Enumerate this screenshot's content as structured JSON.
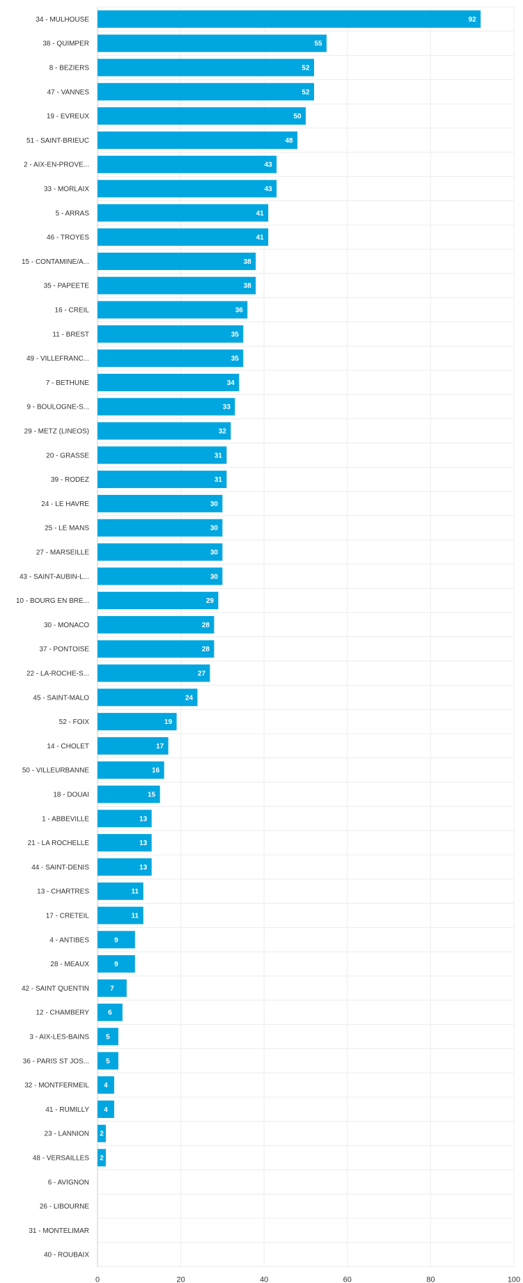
{
  "chart_data": {
    "type": "bar",
    "orientation": "horizontal",
    "title": "",
    "xlabel": "",
    "ylabel": "",
    "xlim": [
      0,
      100
    ],
    "x_ticks": [
      0,
      20,
      40,
      60,
      80,
      100
    ],
    "grid": true,
    "legend": "none",
    "bar_color": "#00a6df",
    "categories": [
      "34 - MULHOUSE",
      "38 - QUIMPER",
      "8 - BEZIERS",
      "47 - VANNES",
      "19 - EVREUX",
      "51 - SAINT-BRIEUC",
      "2 - AIX-EN-PROVE...",
      "33 - MORLAIX",
      "5 - ARRAS",
      "46 - TROYES",
      "15 - CONTAMINE/A...",
      "35 - PAPEETE",
      "16 - CREIL",
      "11 - BREST",
      "49 - VILLEFRANC...",
      "7 - BETHUNE",
      "9 - BOULOGNE-S...",
      "29 - METZ (LINEOS)",
      "20 - GRASSE",
      "39 - RODEZ",
      "24 - LE HAVRE",
      "25 - LE MANS",
      "27 - MARSEILLE",
      "43 - SAINT-AUBIN-L...",
      "10 - BOURG EN BRE...",
      "30 - MONACO",
      "37 - PONTOISE",
      "22 - LA-ROCHE-S...",
      "45 - SAINT-MALO",
      "52 - FOIX",
      "14 - CHOLET",
      "50 - VILLEURBANNE",
      "18 - DOUAI",
      "1 - ABBEVILLE",
      "21 - LA ROCHELLE",
      "44 - SAINT-DENIS",
      "13 - CHARTRES",
      "17 - CRETEIL",
      "4 - ANTIBES",
      "28 - MEAUX",
      "42 - SAINT QUENTIN",
      "12 - CHAMBERY",
      "3 - AIX-LES-BAINS",
      "36 - PARIS ST JOS...",
      "32 - MONTFERMEIL",
      "41 - RUMILLY",
      "23 - LANNION",
      "48 - VERSAILLES",
      "6 - AVIGNON",
      "26 - LIBOURNE",
      "31 - MONTELIMAR",
      "40 - ROUBAIX"
    ],
    "values": [
      92,
      55,
      52,
      52,
      50,
      48,
      43,
      43,
      41,
      41,
      38,
      38,
      36,
      35,
      35,
      34,
      33,
      32,
      31,
      31,
      30,
      30,
      30,
      30,
      29,
      28,
      28,
      27,
      24,
      19,
      17,
      16,
      15,
      13,
      13,
      13,
      11,
      11,
      9,
      9,
      7,
      6,
      5,
      5,
      4,
      4,
      2,
      2,
      0,
      0,
      0,
      0
    ]
  }
}
